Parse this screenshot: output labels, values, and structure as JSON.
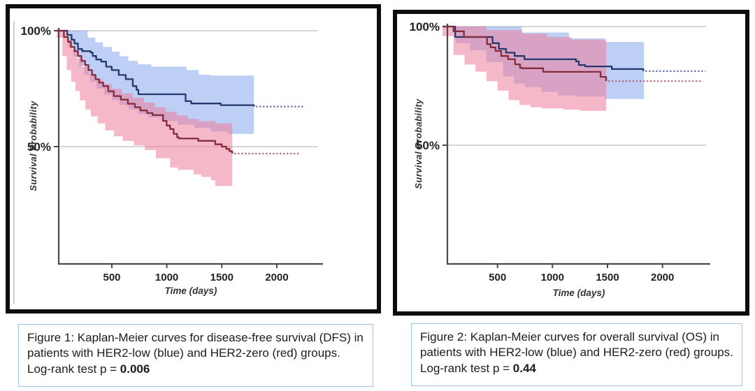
{
  "captions": [
    {
      "prefix": "Figure 1: Kaplan-Meier curves for disease-free survival (DFS) in patients with HER2-low (blue) and HER2-zero (red) groups. Log-rank test p = ",
      "pvalue": "0.006"
    },
    {
      "prefix": "Figure 2: Kaplan-Meier curves for overall survival (OS) in patients with HER2-low (blue) and HER2-zero (red) groups. Log-rank test p = ",
      "pvalue": "0.44"
    }
  ],
  "chart_data": [
    {
      "id": "dfs",
      "type": "line",
      "subtype": "kaplan_meier_step",
      "title": "",
      "xlabel": "Time (days)",
      "ylabel": "Survival Probability",
      "xlim": [
        0,
        2420
      ],
      "ylim": [
        0,
        100
      ],
      "xticks": [
        500,
        1000,
        1500,
        2000
      ],
      "ytick_labels": [
        {
          "value": 100,
          "label": "100%"
        },
        {
          "value": 50,
          "label": "50%"
        }
      ],
      "grid_values": [
        100,
        50
      ],
      "legend": "none",
      "series": [
        {
          "name": "HER2-low",
          "color_key": "blue",
          "steps": [
            [
              0,
              100
            ],
            [
              95,
              98.2
            ],
            [
              134,
              96.1
            ],
            [
              160,
              94.5
            ],
            [
              192,
              92.1
            ],
            [
              230,
              91.2
            ],
            [
              307,
              90.6
            ],
            [
              326,
              89.1
            ],
            [
              358,
              87.6
            ],
            [
              403,
              86.7
            ],
            [
              448,
              84.5
            ],
            [
              499,
              83.0
            ],
            [
              563,
              80.9
            ],
            [
              627,
              79.1
            ],
            [
              691,
              76.1
            ],
            [
              724,
              74.5
            ],
            [
              742,
              72.6
            ],
            [
              1171,
              69.6
            ],
            [
              1222,
              68.6
            ],
            [
              1491,
              67.9
            ],
            [
              1792,
              67.3
            ]
          ],
          "solid_end": 1792,
          "censored_level": 67.3,
          "censored_end": 2250,
          "ci_upper": [
            [
              0,
              100
            ],
            [
              230,
              100
            ],
            [
              280,
              97
            ],
            [
              350,
              95
            ],
            [
              420,
              93
            ],
            [
              500,
              91
            ],
            [
              570,
              89
            ],
            [
              650,
              87
            ],
            [
              740,
              85.5
            ],
            [
              860,
              84.5
            ],
            [
              1160,
              84.5
            ],
            [
              1180,
              83
            ],
            [
              1290,
              81
            ],
            [
              1390,
              80.7
            ],
            [
              1792,
              80.7
            ]
          ],
          "ci_lower": [
            [
              0,
              100
            ],
            [
              100,
              93
            ],
            [
              150,
              89
            ],
            [
              200,
              85
            ],
            [
              250,
              81
            ],
            [
              300,
              78
            ],
            [
              360,
              75
            ],
            [
              430,
              72.5
            ],
            [
              500,
              70
            ],
            [
              570,
              68
            ],
            [
              650,
              66
            ],
            [
              740,
              64
            ],
            [
              830,
              62.5
            ],
            [
              950,
              61
            ],
            [
              1100,
              59.5
            ],
            [
              1250,
              58
            ],
            [
              1400,
              56.5
            ],
            [
              1550,
              55.5
            ],
            [
              1792,
              55.2
            ]
          ]
        },
        {
          "name": "HER2-zero",
          "color_key": "red",
          "steps": [
            [
              0,
              100
            ],
            [
              64,
              97.3
            ],
            [
              102,
              95.2
            ],
            [
              128,
              93.0
            ],
            [
              160,
              91.2
            ],
            [
              192,
              89.1
            ],
            [
              224,
              87.0
            ],
            [
              256,
              85.2
            ],
            [
              288,
              83.0
            ],
            [
              320,
              80.9
            ],
            [
              352,
              79.1
            ],
            [
              384,
              77.6
            ],
            [
              422,
              76.1
            ],
            [
              467,
              73.9
            ],
            [
              518,
              71.8
            ],
            [
              582,
              70.3
            ],
            [
              646,
              68.5
            ],
            [
              710,
              67.0
            ],
            [
              760,
              65.6
            ],
            [
              820,
              64.5
            ],
            [
              870,
              63.6
            ],
            [
              966,
              61.1
            ],
            [
              998,
              59.1
            ],
            [
              1030,
              57.6
            ],
            [
              1062,
              55.5
            ],
            [
              1094,
              54.0
            ],
            [
              1110,
              53.5
            ],
            [
              1286,
              52.5
            ],
            [
              1440,
              51.0
            ],
            [
              1500,
              50.0
            ],
            [
              1540,
              49.0
            ],
            [
              1570,
              48.0
            ],
            [
              1595,
              47.0
            ]
          ],
          "solid_end": 1595,
          "censored_level": 47.0,
          "censored_end": 2200,
          "ci_upper": [
            [
              0,
              100
            ],
            [
              64,
              100
            ],
            [
              100,
              96
            ],
            [
              140,
              92
            ],
            [
              185,
              88
            ],
            [
              235,
              84.5
            ],
            [
              290,
              81.5
            ],
            [
              350,
              79
            ],
            [
              420,
              77
            ],
            [
              500,
              75
            ],
            [
              590,
              73
            ],
            [
              690,
              71
            ],
            [
              790,
              69
            ],
            [
              890,
              67
            ],
            [
              990,
              65
            ],
            [
              1090,
              63.5
            ],
            [
              1190,
              62
            ],
            [
              1290,
              61
            ],
            [
              1440,
              60
            ],
            [
              1595,
              60
            ]
          ],
          "ci_lower": [
            [
              0,
              97
            ],
            [
              50,
              89
            ],
            [
              90,
              83
            ],
            [
              130,
              78
            ],
            [
              170,
              74
            ],
            [
              210,
              70
            ],
            [
              260,
              66
            ],
            [
              310,
              63
            ],
            [
              370,
              60
            ],
            [
              440,
              57
            ],
            [
              520,
              54.5
            ],
            [
              600,
              52.5
            ],
            [
              700,
              50.5
            ],
            [
              800,
              48.5
            ],
            [
              900,
              45
            ],
            [
              1030,
              41
            ],
            [
              1100,
              40
            ],
            [
              1244,
              38
            ],
            [
              1314,
              37
            ],
            [
              1403,
              35.5
            ],
            [
              1441,
              33
            ],
            [
              1595,
              33
            ]
          ]
        }
      ]
    },
    {
      "id": "os",
      "type": "line",
      "subtype": "kaplan_meier_step",
      "title": "",
      "xlabel": "Time (days)",
      "ylabel": "Survival Probability",
      "xlim": [
        0,
        2413
      ],
      "ylim": [
        0,
        100
      ],
      "xticks": [
        500,
        1000,
        1500,
        2000
      ],
      "ytick_labels": [
        {
          "value": 100,
          "label": "100%"
        },
        {
          "value": 50,
          "label": "50%"
        }
      ],
      "grid_values": [
        100,
        50
      ],
      "legend": "none",
      "series": [
        {
          "name": "HER2-low",
          "color_key": "blue",
          "steps": [
            [
              0,
              100
            ],
            [
              115,
              95.6
            ],
            [
              455,
              93.0
            ],
            [
              513,
              90.6
            ],
            [
              577,
              89.0
            ],
            [
              655,
              87.6
            ],
            [
              745,
              86.2
            ],
            [
              1214,
              85.3
            ],
            [
              1240,
              83.8
            ],
            [
              1297,
              83.2
            ],
            [
              1539,
              82.1
            ],
            [
              1826,
              81.2
            ]
          ],
          "solid_end": 1826,
          "censored_level": 81.2,
          "censored_end": 2390,
          "ci_upper": [
            [
              0,
              100
            ],
            [
              690,
              100
            ],
            [
              720,
              97.5
            ],
            [
              1130,
              97.5
            ],
            [
              1150,
              95
            ],
            [
              1350,
              95
            ],
            [
              1478,
              93.5
            ],
            [
              1832,
              93.5
            ]
          ],
          "ci_lower": [
            [
              0,
              100
            ],
            [
              120,
              93
            ],
            [
              250,
              90
            ],
            [
              400,
              85
            ],
            [
              550,
              79
            ],
            [
              650,
              76
            ],
            [
              750,
              74.5
            ],
            [
              900,
              72.5
            ],
            [
              1050,
              71
            ],
            [
              1200,
              70.5
            ],
            [
              1478,
              69.5
            ],
            [
              1832,
              69.5
            ]
          ]
        },
        {
          "name": "HER2-zero",
          "color_key": "red",
          "steps": [
            [
              0,
              100
            ],
            [
              100,
              98.0
            ],
            [
              195,
              95.6
            ],
            [
              405,
              92.6
            ],
            [
              437,
              91.2
            ],
            [
              482,
              89.7
            ],
            [
              533,
              87.6
            ],
            [
              597,
              86.2
            ],
            [
              660,
              84.1
            ],
            [
              705,
              82.6
            ],
            [
              724,
              82.4
            ],
            [
              915,
              80.9
            ],
            [
              1437,
              78.8
            ],
            [
              1488,
              77.0
            ]
          ],
          "solid_end": 1488,
          "censored_level": 77.0,
          "censored_end": 2360,
          "ci_upper": [
            [
              0,
              100
            ],
            [
              340,
              100
            ],
            [
              400,
              98.5
            ],
            [
              700,
              98.5
            ],
            [
              724,
              97
            ],
            [
              950,
              95.6
            ],
            [
              1170,
              94.5
            ],
            [
              1488,
              94
            ]
          ],
          "ci_lower": [
            [
              0,
              96
            ],
            [
              100,
              88
            ],
            [
              200,
              84
            ],
            [
              300,
              81
            ],
            [
              400,
              77
            ],
            [
              500,
              73
            ],
            [
              600,
              69
            ],
            [
              700,
              67
            ],
            [
              800,
              66
            ],
            [
              900,
              65.5
            ],
            [
              1100,
              65
            ],
            [
              1250,
              64.5
            ],
            [
              1488,
              63.5
            ]
          ]
        }
      ]
    }
  ],
  "colors": {
    "her2_low_line": "#24386e",
    "her2_low_dotted": "#5c6aaa",
    "her2_low_band": "#7da0eb",
    "her2_zero_line": "#842c3c",
    "her2_zero_dotted": "#b2606e",
    "her2_zero_band": "#ec7e9a",
    "gridline": "#c9c9c9",
    "axis": "#4a4a4a",
    "caption_border": "#9ec3e8"
  }
}
